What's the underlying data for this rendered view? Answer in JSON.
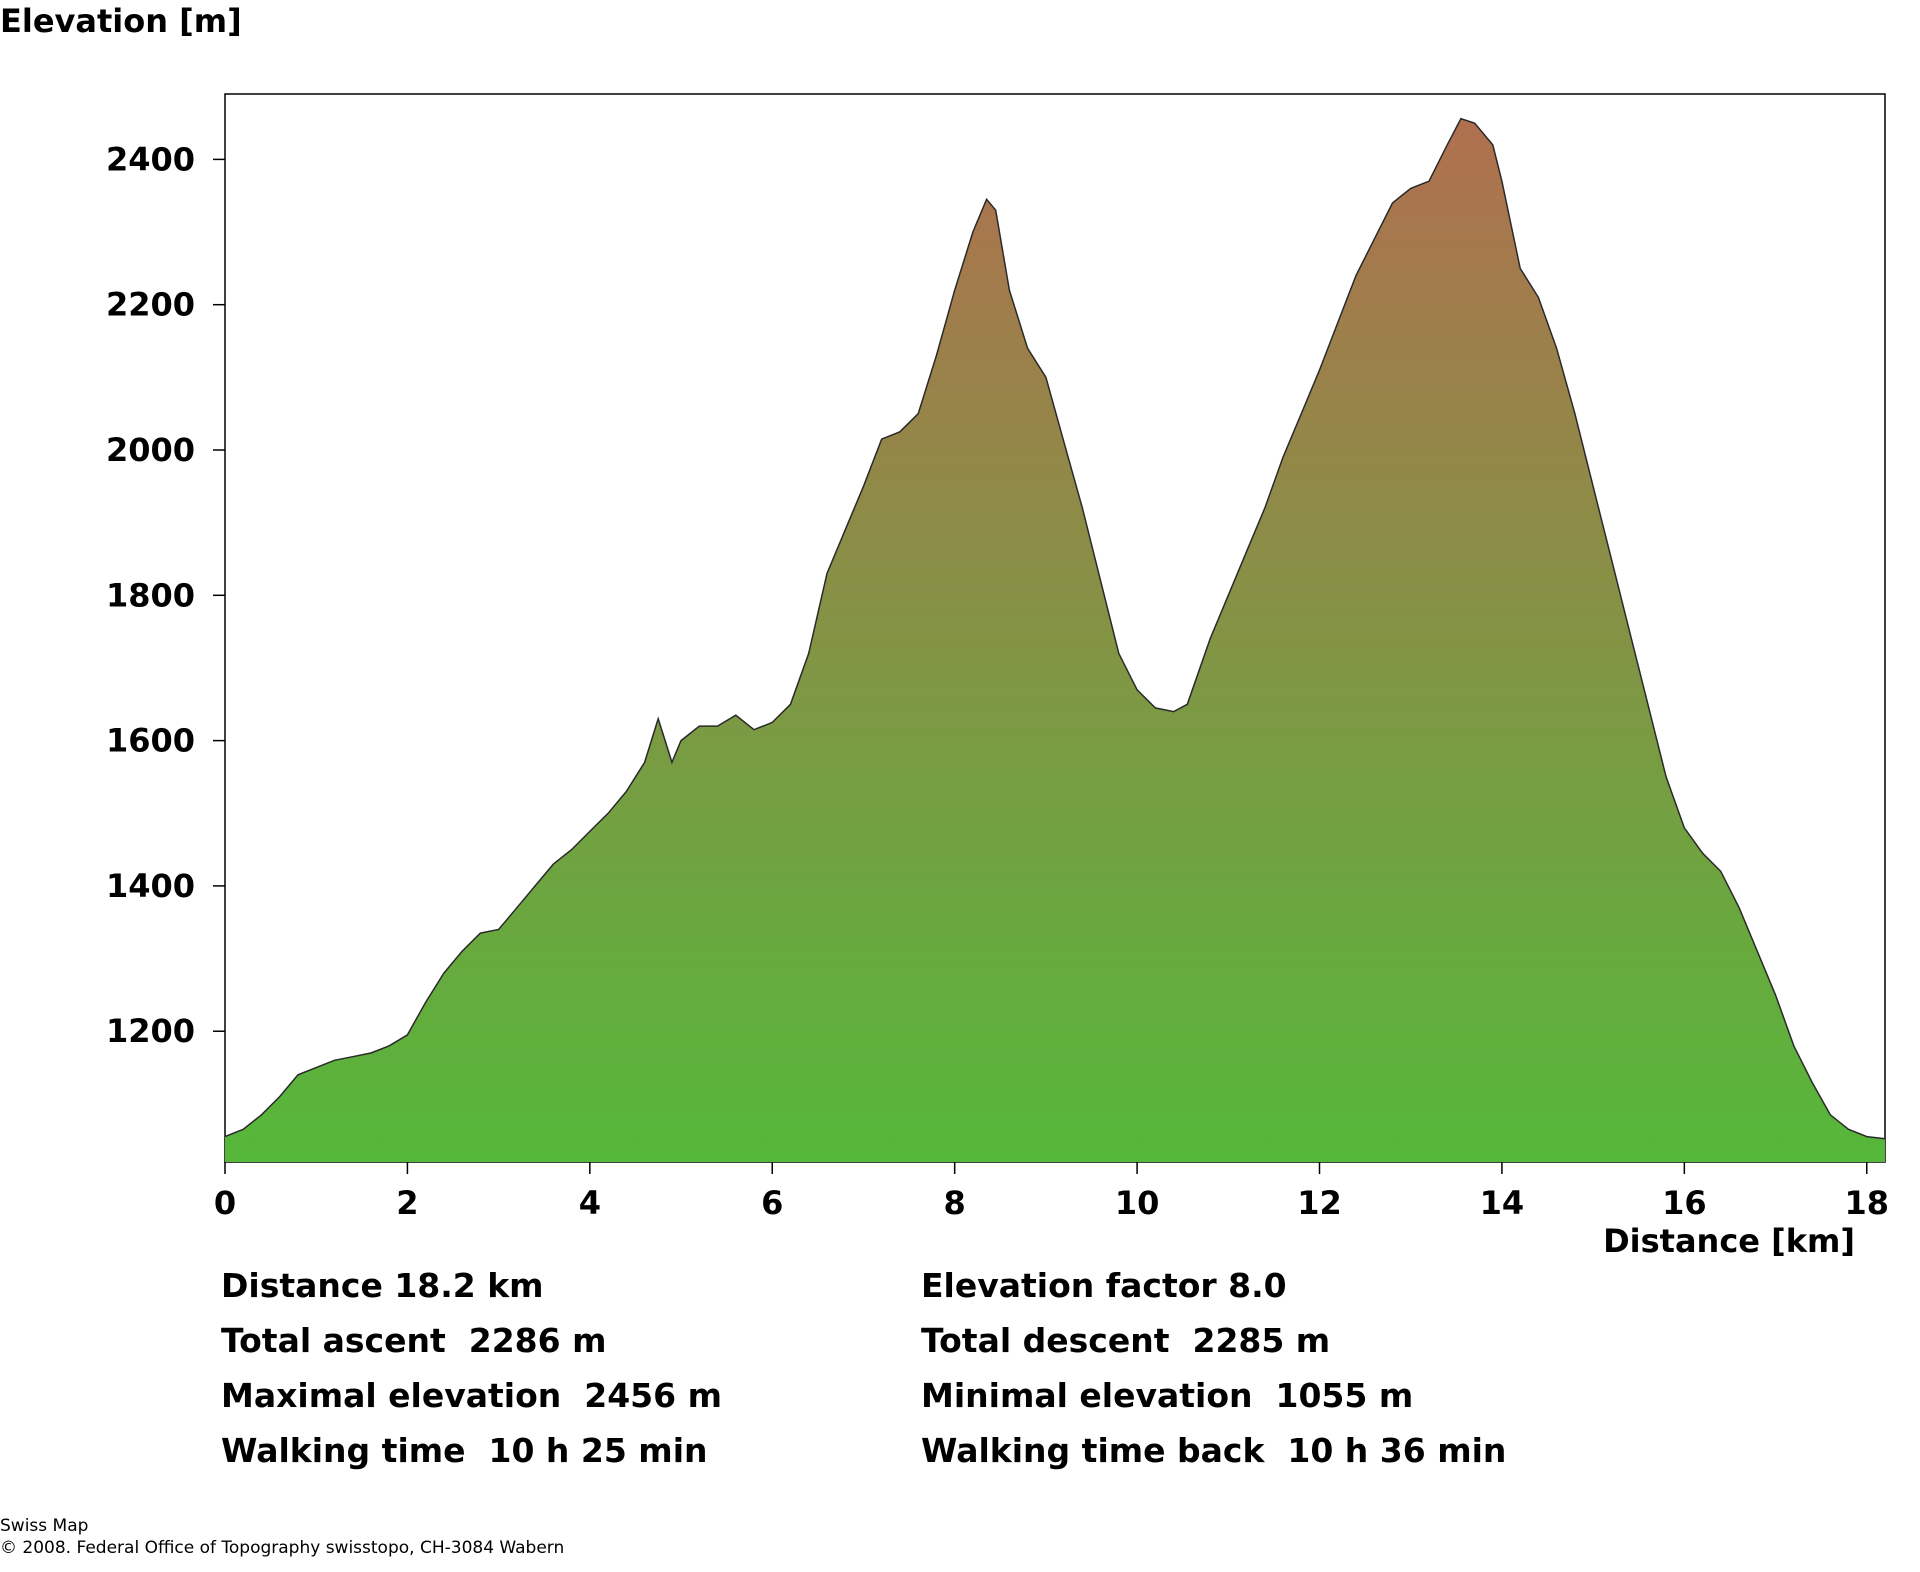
{
  "chart_data": {
    "type": "area",
    "ylabel": "Elevation [m]",
    "xlabel": "Distance [km]",
    "xlim": [
      0,
      18.2
    ],
    "ylim": [
      1020,
      2490
    ],
    "xticks": [
      0,
      2,
      4,
      6,
      8,
      10,
      12,
      14,
      16,
      18
    ],
    "yticks": [
      1200,
      1400,
      1600,
      1800,
      2000,
      2200,
      2400
    ],
    "grid": false,
    "fill_gradient": {
      "top": "#b0704f",
      "bottom": "#55b83a"
    },
    "series": [
      {
        "x": [
          0,
          0.2,
          0.4,
          0.6,
          0.8,
          1.0,
          1.2,
          1.4,
          1.6,
          1.8,
          2.0,
          2.2,
          2.4,
          2.6,
          2.8,
          3.0,
          3.2,
          3.4,
          3.6,
          3.8,
          4.0,
          4.2,
          4.4,
          4.6,
          4.75,
          4.85,
          4.9,
          5.0,
          5.2,
          5.4,
          5.6,
          5.8,
          6.0,
          6.2,
          6.4,
          6.6,
          6.8,
          7.0,
          7.2,
          7.4,
          7.6,
          7.8,
          8.0,
          8.2,
          8.35,
          8.45,
          8.6,
          8.8,
          9.0,
          9.2,
          9.4,
          9.6,
          9.8,
          10.0,
          10.2,
          10.4,
          10.55,
          10.8,
          11.0,
          11.2,
          11.4,
          11.6,
          11.8,
          12.0,
          12.2,
          12.4,
          12.6,
          12.8,
          13.0,
          13.2,
          13.4,
          13.55,
          13.7,
          13.9,
          14.0,
          14.2,
          14.4,
          14.6,
          14.8,
          15.0,
          15.2,
          15.4,
          15.6,
          15.8,
          16.0,
          16.2,
          16.4,
          16.6,
          16.8,
          17.0,
          17.2,
          17.4,
          17.6,
          17.8,
          18.0,
          18.2
        ],
        "y": [
          1055,
          1065,
          1085,
          1110,
          1140,
          1150,
          1160,
          1165,
          1170,
          1180,
          1195,
          1240,
          1280,
          1310,
          1335,
          1340,
          1370,
          1400,
          1430,
          1450,
          1475,
          1500,
          1530,
          1570,
          1630,
          1590,
          1570,
          1600,
          1620,
          1620,
          1635,
          1615,
          1625,
          1650,
          1720,
          1830,
          1890,
          1950,
          2015,
          2025,
          2050,
          2130,
          2220,
          2300,
          2345,
          2330,
          2220,
          2140,
          2100,
          2010,
          1920,
          1820,
          1720,
          1670,
          1645,
          1640,
          1650,
          1740,
          1800,
          1860,
          1920,
          1990,
          2050,
          2110,
          2175,
          2240,
          2290,
          2340,
          2360,
          2370,
          2420,
          2456,
          2450,
          2420,
          2370,
          2250,
          2210,
          2140,
          2050,
          1950,
          1850,
          1750,
          1650,
          1550,
          1480,
          1445,
          1420,
          1370,
          1310,
          1250,
          1180,
          1130,
          1085,
          1065,
          1055,
          1052
        ]
      }
    ]
  },
  "stats": {
    "distance": "Distance 18.2 km",
    "elevation_factor": "Elevation factor 8.0",
    "total_ascent": "Total ascent  2286 m",
    "total_descent": "Total descent  2285 m",
    "max_elevation": "Maximal elevation  2456 m",
    "min_elevation": "Minimal elevation  1055 m",
    "walking_time": "Walking time  10 h 25 min",
    "walking_time_back": "Walking time back  10 h 36 min"
  },
  "footer": {
    "line1": "Swiss Map",
    "line2": "© 2008. Federal Office of Topography swisstopo, CH-3084 Wabern"
  }
}
